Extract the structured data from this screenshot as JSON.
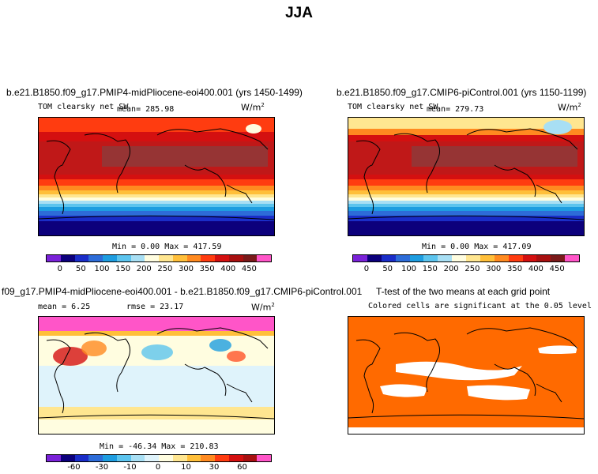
{
  "title": "JJA",
  "colors": {
    "abs_scale": [
      "#7a22d8",
      "#0c007c",
      "#1a2dc8",
      "#2d6cd8",
      "#1e9de0",
      "#5cc4ee",
      "#a8dff4",
      "#fffde0",
      "#ffe690",
      "#ffbf3a",
      "#ff8a20",
      "#ff3c10",
      "#d41010",
      "#a81010",
      "#7a1a1a",
      "#ff55c8"
    ],
    "diff_scale": [
      "#7a22d8",
      "#0c007c",
      "#1a2dc8",
      "#2d6cd8",
      "#1e9de0",
      "#5cc4ee",
      "#a8dff4",
      "#dff3fb",
      "#fffde0",
      "#ffe690",
      "#ffbf3a",
      "#ff8a20",
      "#ff3c10",
      "#d41010",
      "#a81010",
      "#ff55c8"
    ],
    "ttest_fill": "#ff6a00"
  },
  "panels": {
    "top_left": {
      "title": "b.e21.B1850.f09_g17.PMIP4-midPliocene-eoi400.001 (yrs 1450-1499)",
      "variable": "TOM clearsky net SW",
      "mean_text": "mean= 285.98",
      "units": "W/m",
      "units_exp": "2",
      "stats": "Min =   0.00 Max = 417.59"
    },
    "top_right": {
      "title": "b.e21.B1850.f09_g17.CMIP6-piControl.001 (yrs 1150-1199)",
      "variable": "TOM clearsky net SW",
      "mean_text": "mean= 279.73",
      "units": "W/m",
      "units_exp": "2",
      "stats": "Min =   0.00 Max = 417.09"
    },
    "bottom_left": {
      "title": "f09_g17.PMIP4-midPliocene-eoi400.001 - b.e21.B1850.f09_g17.CMIP6-piControl.001",
      "mean_text": "mean =   6.25",
      "rmse_text": "rmse =  23.17",
      "units": "W/m",
      "units_exp": "2",
      "stats": "Min = -46.34 Max = 210.83"
    },
    "bottom_right": {
      "title": "T-test of the two means at each grid point",
      "subtitle": "Colored cells are significant at the 0.05 level"
    }
  },
  "chart_data": [
    {
      "type": "heatmap",
      "title": "b.e21.B1850.f09_g17.PMIP4-midPliocene-eoi400.001 (yrs 1450-1499)",
      "variable": "TOM clearsky net SW",
      "mean": 285.98,
      "units": "W/m2",
      "min": 0.0,
      "max": 417.59,
      "colorbar_ticks": [
        "0",
        "50",
        "100",
        "150",
        "200",
        "250",
        "300",
        "350",
        "400",
        "450"
      ],
      "colorbar_levels": [
        0,
        50,
        100,
        150,
        200,
        250,
        300,
        350,
        400,
        450
      ]
    },
    {
      "type": "heatmap",
      "title": "b.e21.B1850.f09_g17.CMIP6-piControl.001 (yrs 1150-1199)",
      "variable": "TOM clearsky net SW",
      "mean": 279.73,
      "units": "W/m2",
      "min": 0.0,
      "max": 417.09,
      "colorbar_ticks": [
        "0",
        "50",
        "100",
        "150",
        "200",
        "250",
        "300",
        "350",
        "400",
        "450"
      ],
      "colorbar_levels": [
        0,
        50,
        100,
        150,
        200,
        250,
        300,
        350,
        400,
        450
      ]
    },
    {
      "type": "heatmap",
      "title": "f09_g17.PMIP4-midPliocene-eoi400.001 - b.e21.B1850.f09_g17.CMIP6-piControl.001",
      "mean": 6.25,
      "rmse": 23.17,
      "units": "W/m2",
      "min": -46.34,
      "max": 210.83,
      "colorbar_ticks": [
        "-60",
        "-30",
        "-10",
        "0",
        "10",
        "30",
        "60"
      ],
      "colorbar_levels": [
        -60,
        -30,
        -10,
        0,
        10,
        30,
        60
      ]
    },
    {
      "type": "heatmap",
      "title": "T-test of the two means at each grid point",
      "subtitle": "Colored cells are significant at the 0.05 level",
      "significance_level": 0.05
    }
  ]
}
